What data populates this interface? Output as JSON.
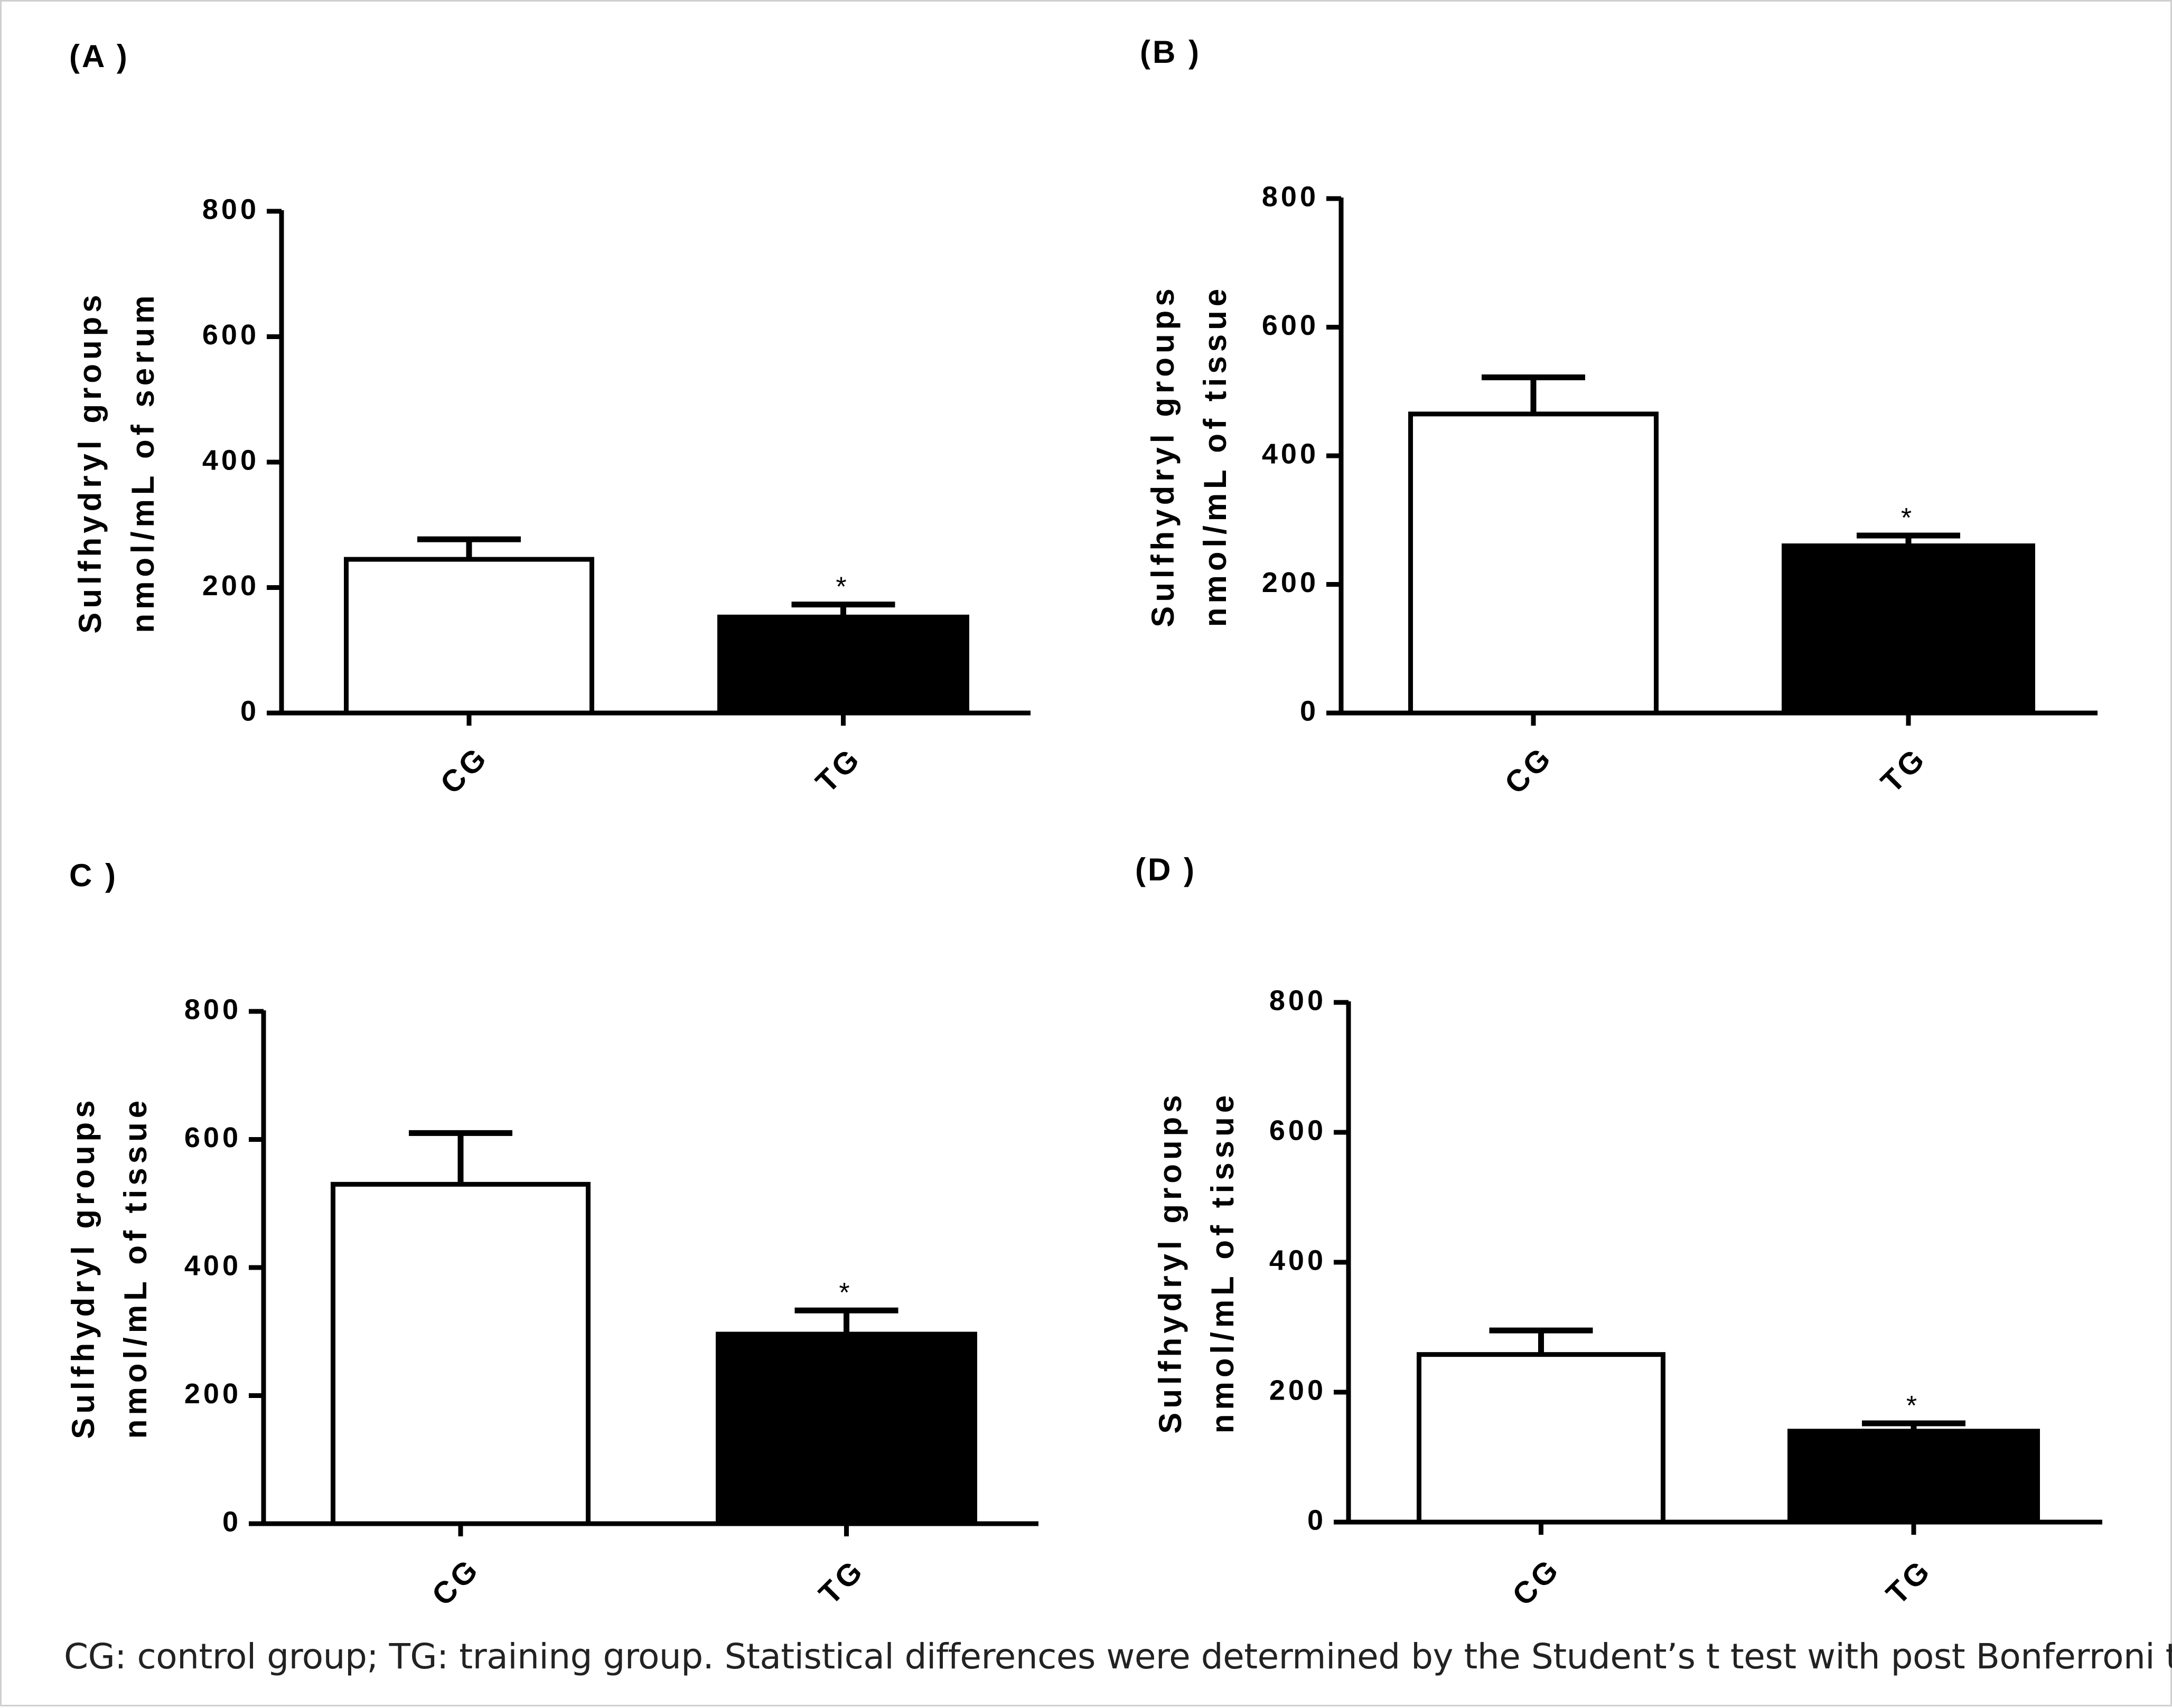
{
  "caption": "CG: control group; TG: training group. Statistical differences were determined by the Student’s t test with post Bonferroni test.",
  "colors": {
    "axis": "#000000",
    "cg_fill": "#ffffff",
    "tg_fill": "#000000"
  },
  "chart_data": [
    {
      "panel": "(A )",
      "type": "bar",
      "categories": [
        "CG",
        "TG"
      ],
      "values": [
        245,
        153
      ],
      "errors": [
        32,
        20
      ],
      "significance": [
        "",
        "*"
      ],
      "ylabel": "Sulfhydryl groups",
      "ylabel2": "nmol/mL of serum",
      "ylim": [
        0,
        800
      ],
      "yticks": [
        "0",
        "200",
        "400",
        "600",
        "800"
      ]
    },
    {
      "panel": "(B )",
      "type": "bar",
      "categories": [
        "CG",
        "TG"
      ],
      "values": [
        465,
        260
      ],
      "errors": [
        57,
        16
      ],
      "significance": [
        "",
        "*"
      ],
      "ylabel": "Sulfhydryl groups",
      "ylabel2": "nmol/mL of tissue",
      "ylim": [
        0,
        800
      ],
      "yticks": [
        "0",
        "200",
        "400",
        "600",
        "800"
      ]
    },
    {
      "panel": "C )",
      "type": "bar",
      "categories": [
        "CG",
        "TG"
      ],
      "values": [
        530,
        296
      ],
      "errors": [
        80,
        37
      ],
      "significance": [
        "",
        "*"
      ],
      "ylabel": "Sulfhydryl groups",
      "ylabel2": "nmol/mL of tissue",
      "ylim": [
        0,
        800
      ],
      "yticks": [
        "0",
        "200",
        "400",
        "600",
        "800"
      ]
    },
    {
      "panel": "(D )",
      "type": "bar",
      "categories": [
        "CG",
        "TG"
      ],
      "values": [
        258,
        140
      ],
      "errors": [
        37,
        12
      ],
      "significance": [
        "",
        "*"
      ],
      "ylabel": "Sulfhydryl groups",
      "ylabel2": "nmol/mL of tissue",
      "ylim": [
        0,
        800
      ],
      "yticks": [
        "0",
        "200",
        "400",
        "600",
        "800"
      ]
    }
  ]
}
